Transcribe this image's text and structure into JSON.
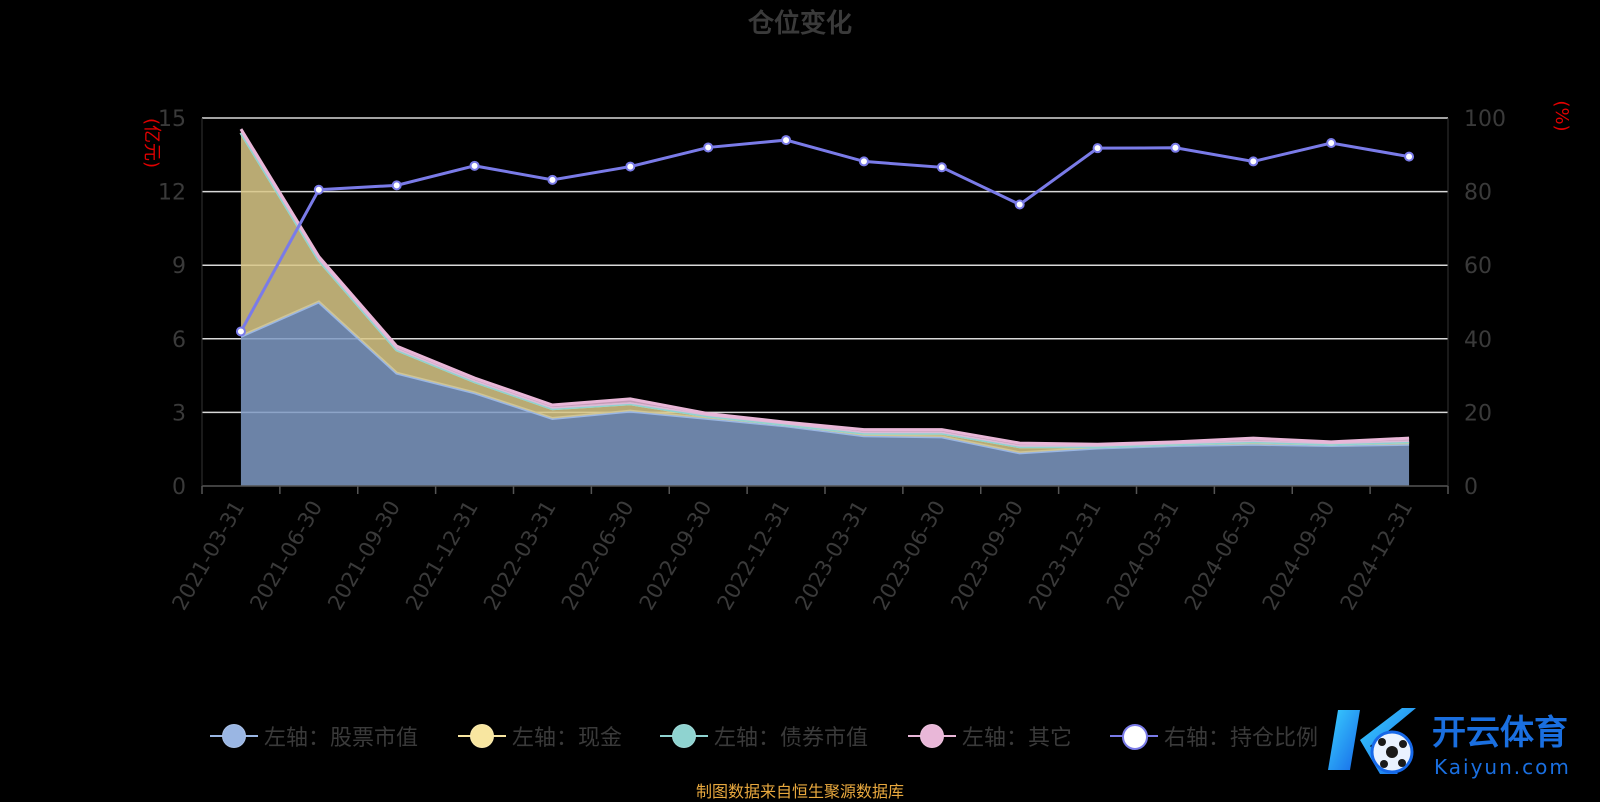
{
  "chart_data": {
    "type": "area",
    "title": "仓位变化",
    "left_axis_unit": "(亿元)",
    "right_axis_unit": "(%)",
    "categories": [
      "2021-03-31",
      "2021-06-30",
      "2021-09-30",
      "2021-12-31",
      "2022-03-31",
      "2022-06-30",
      "2022-09-30",
      "2022-12-31",
      "2023-03-31",
      "2023-06-30",
      "2023-09-30",
      "2023-12-31",
      "2024-03-31",
      "2024-06-30",
      "2024-09-30",
      "2024-12-31"
    ],
    "left_ylim": [
      0,
      15
    ],
    "left_yticks": [
      "0",
      "3",
      "6",
      "9",
      "12",
      "15"
    ],
    "right_ylim": [
      0,
      100
    ],
    "right_yticks": [
      "0",
      "20",
      "40",
      "60",
      "80",
      "100"
    ],
    "grid": true,
    "legend_position": "bottom",
    "series": [
      {
        "name": "左轴：股票市值",
        "axis": "left",
        "kind": "area",
        "color": "#9ab6e3",
        "values": [
          6.1,
          7.5,
          4.6,
          3.8,
          2.75,
          3.05,
          2.75,
          2.45,
          2.05,
          2.0,
          1.35,
          1.55,
          1.65,
          1.7,
          1.65,
          1.7
        ]
      },
      {
        "name": "左轴：现金",
        "axis": "left",
        "kind": "area",
        "color": "#f8e6a0",
        "values": [
          8.3,
          1.7,
          0.95,
          0.45,
          0.4,
          0.3,
          0.1,
          0.05,
          0.1,
          0.15,
          0.25,
          0.05,
          0.05,
          0.1,
          0.05,
          0.1
        ]
      },
      {
        "name": "左轴：债券市值",
        "axis": "left",
        "kind": "area",
        "color": "#8fd3d0",
        "values": [
          0,
          0,
          0,
          0,
          0,
          0,
          0,
          0,
          0,
          0,
          0,
          0,
          0,
          0,
          0,
          0
        ]
      },
      {
        "name": "左轴：其它",
        "axis": "left",
        "kind": "area",
        "color": "#e9b7d8",
        "values": [
          0.15,
          0.15,
          0.15,
          0.15,
          0.15,
          0.2,
          0.1,
          0.1,
          0.15,
          0.15,
          0.15,
          0.1,
          0.1,
          0.15,
          0.1,
          0.15
        ]
      },
      {
        "name": "右轴：持仓比例",
        "axis": "right",
        "kind": "line",
        "color": "#7a7be8",
        "values": [
          42,
          80.5,
          81.7,
          87,
          83.2,
          86.8,
          92,
          94,
          88.2,
          86.6,
          76.5,
          91.8,
          91.9,
          88.2,
          93.2,
          89.5
        ]
      }
    ]
  },
  "footer": {
    "text": "制图数据来自恒生聚源数据库",
    "color": "#e8a83e"
  },
  "watermark": {
    "brand_cn": "开云体育",
    "brand_en": "Kaiyun.com"
  },
  "colors": {
    "axis_label": "#3a3a3a",
    "grid": "#d9d9d9",
    "title": "#3a3a3a",
    "unit": "#e00000",
    "line": "#7a7be8",
    "marker_fill": "#ffffff"
  }
}
